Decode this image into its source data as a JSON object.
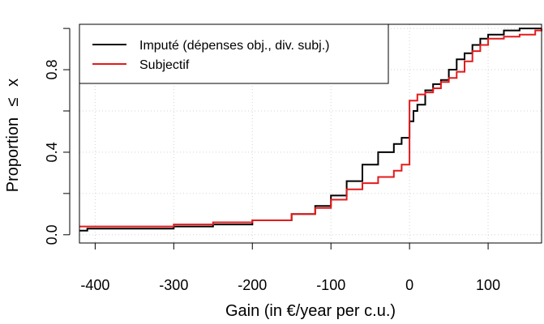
{
  "chart_data": {
    "type": "line",
    "step": true,
    "title": "",
    "xlabel": "Gain (in €/year per c.u.)",
    "ylabel_text": "Proportion",
    "ylabel_symbol": "≤",
    "ylabel_var": "x",
    "xlim": [
      -420,
      168
    ],
    "ylim": [
      -0.04,
      1.02
    ],
    "x_ticks": [
      -400,
      -300,
      -200,
      -100,
      0,
      100
    ],
    "x_tick_labels": [
      "-400",
      "-300",
      "-200",
      "-100",
      "0",
      "100"
    ],
    "y_ticks": [
      0.0,
      0.2,
      0.4,
      0.6,
      0.8,
      1.0
    ],
    "y_tick_labels": [
      "0.0",
      "",
      "0.4",
      "",
      "0.8",
      ""
    ],
    "grid": true,
    "legend_position": "top-left",
    "series": [
      {
        "name": "Imputé (dépenses obj., div. subj.)",
        "color": "#000000",
        "x": [
          -420,
          -410,
          -300,
          -250,
          -200,
          -150,
          -120,
          -100,
          -80,
          -60,
          -40,
          -20,
          -10,
          0,
          5,
          10,
          20,
          30,
          40,
          50,
          60,
          70,
          80,
          90,
          100,
          120,
          140,
          168
        ],
        "y": [
          0.02,
          0.03,
          0.04,
          0.05,
          0.07,
          0.1,
          0.14,
          0.19,
          0.26,
          0.34,
          0.4,
          0.44,
          0.47,
          0.55,
          0.6,
          0.63,
          0.7,
          0.73,
          0.75,
          0.8,
          0.85,
          0.88,
          0.92,
          0.95,
          0.97,
          0.99,
          1.0,
          1.0
        ]
      },
      {
        "name": "Subjectif",
        "color": "#e31a1c",
        "x": [
          -420,
          -300,
          -250,
          -200,
          -150,
          -120,
          -100,
          -80,
          -60,
          -40,
          -20,
          -10,
          0,
          0,
          10,
          20,
          30,
          40,
          50,
          60,
          70,
          80,
          90,
          100,
          120,
          140,
          160,
          168
        ],
        "y": [
          0.04,
          0.05,
          0.06,
          0.07,
          0.1,
          0.13,
          0.17,
          0.22,
          0.25,
          0.28,
          0.31,
          0.34,
          0.37,
          0.65,
          0.68,
          0.69,
          0.71,
          0.74,
          0.76,
          0.79,
          0.84,
          0.89,
          0.92,
          0.95,
          0.96,
          0.97,
          0.99,
          1.0
        ]
      }
    ]
  }
}
